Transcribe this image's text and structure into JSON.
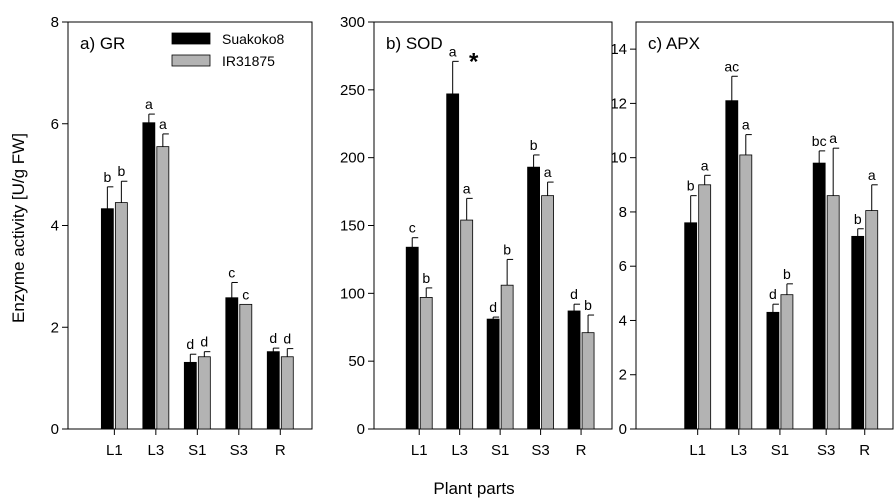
{
  "figure": {
    "ylabel": "Enzyme activity [U/g FW]",
    "xlabel": "Plant parts"
  },
  "legend": {
    "placement": "top-left of first panel",
    "entries": [
      {
        "name": "Suakoko8",
        "color": "#000000"
      },
      {
        "name": "IR31875",
        "color": "#b3b3b3"
      }
    ]
  },
  "chart_data": [
    {
      "type": "bar",
      "title": "a) GR",
      "categories": [
        "L1",
        "L3",
        "S1",
        "S3",
        "R"
      ],
      "ylim": [
        0,
        8
      ],
      "yticks": [
        0,
        2,
        4,
        6,
        8
      ],
      "series": [
        {
          "name": "Suakoko8",
          "color": "#000000",
          "values": [
            4.33,
            6.02,
            1.31,
            2.58,
            1.52
          ],
          "errors": [
            0.43,
            0.17,
            0.16,
            0.3,
            0.07
          ],
          "labels": [
            "b",
            "a",
            "d",
            "c",
            "d"
          ]
        },
        {
          "name": "IR31875",
          "color": "#b3b3b3",
          "values": [
            4.45,
            5.55,
            1.42,
            2.45,
            1.42
          ],
          "errors": [
            0.42,
            0.25,
            0.1,
            0.0,
            0.16
          ],
          "labels": [
            "b",
            "a",
            "d",
            "c",
            "d"
          ]
        }
      ]
    },
    {
      "type": "bar",
      "title": "b) SOD",
      "categories": [
        "L1",
        "L3",
        "S1",
        "S3",
        "R"
      ],
      "ylim": [
        0,
        300
      ],
      "yticks": [
        0,
        50,
        100,
        150,
        200,
        250,
        300
      ],
      "series": [
        {
          "name": "Suakoko8",
          "color": "#000000",
          "values": [
            134,
            247,
            81,
            193,
            87
          ],
          "errors": [
            7,
            24,
            1.5,
            9,
            5
          ],
          "labels": [
            "c",
            "a",
            "d",
            "b",
            "d"
          ]
        },
        {
          "name": "IR31875",
          "color": "#b3b3b3",
          "values": [
            97,
            154,
            106,
            172,
            71
          ],
          "errors": [
            7,
            16,
            19,
            10,
            13
          ],
          "labels": [
            "b",
            "a",
            "b",
            "a",
            "b"
          ]
        }
      ],
      "annotations": [
        {
          "text": "*",
          "category": "L3"
        }
      ]
    },
    {
      "type": "bar",
      "title": "c) APX",
      "categories": [
        "L1",
        "L3",
        "S1",
        "S3",
        "R"
      ],
      "ylim": [
        0,
        15
      ],
      "yticks": [
        0,
        2,
        4,
        6,
        8,
        10,
        12,
        14
      ],
      "series": [
        {
          "name": "Suakoko8",
          "color": "#000000",
          "values": [
            7.6,
            12.1,
            4.3,
            9.8,
            7.1
          ],
          "errors": [
            1.0,
            0.9,
            0.3,
            0.45,
            0.28
          ],
          "labels": [
            "b",
            "ac",
            "d",
            "bc",
            "b"
          ]
        },
        {
          "name": "IR31875",
          "color": "#b3b3b3",
          "values": [
            9.0,
            10.1,
            4.95,
            8.6,
            8.05
          ],
          "errors": [
            0.35,
            0.75,
            0.4,
            1.75,
            0.95
          ],
          "labels": [
            "a",
            "a",
            "b",
            "a",
            "a"
          ]
        }
      ]
    }
  ]
}
